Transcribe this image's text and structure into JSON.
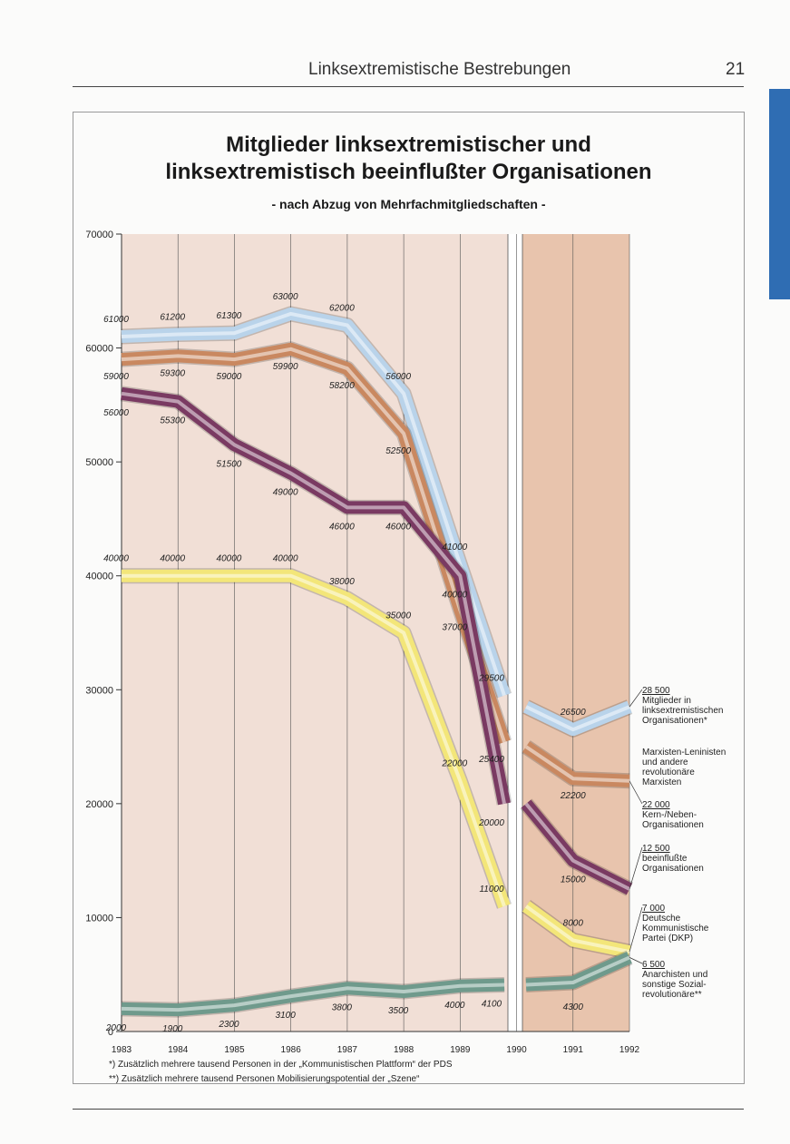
{
  "header": {
    "title": "Linksextremistische Bestrebungen",
    "page_number": "21"
  },
  "colors": {
    "background_before_1990": "#f1dfd6",
    "background_after_1990": "#e8c4ad",
    "series": [
      "#b9d3ea",
      "#c98860",
      "#7a3a62",
      "#f3e679",
      "#6f9a8c"
    ]
  },
  "chart_data": {
    "type": "line",
    "title_line1": "Mitglieder linksextremistischer und",
    "title_line2": "linksextremistisch beeinflußter Organisationen",
    "subtitle": "- nach Abzug von Mehrfachmitgliedschaften -",
    "xlabel": "",
    "ylabel": "",
    "ylim": [
      0,
      70000
    ],
    "yticks": [
      "0",
      "10000",
      "20000",
      "30000",
      "40000",
      "50000",
      "60000",
      "70000"
    ],
    "xticks": [
      "1983",
      "1984",
      "1985",
      "1986",
      "1987",
      "1988",
      "1989",
      "1990",
      "1991",
      "1992"
    ],
    "grid": true,
    "break_after": "1990",
    "series": [
      {
        "name": "Mitglieder in linksextremistischen Organisationen*",
        "segment1": [
          [
            1983,
            61000
          ],
          [
            1984,
            61200
          ],
          [
            1985,
            61300
          ],
          [
            1986,
            63000
          ],
          [
            1987,
            62000
          ],
          [
            1988,
            56000
          ],
          [
            1989,
            41000
          ],
          [
            1990,
            29500
          ]
        ],
        "segment2": [
          [
            1990,
            28500
          ],
          [
            1991,
            26500
          ],
          [
            1992,
            28500
          ]
        ],
        "labels": [
          {
            "x": 1983,
            "y": 61000,
            "text": "61000"
          },
          {
            "x": 1984,
            "y": 61200,
            "text": "61200"
          },
          {
            "x": 1985,
            "y": 61300,
            "text": "61300"
          },
          {
            "x": 1986,
            "y": 63000,
            "text": "63000"
          },
          {
            "x": 1987,
            "y": 62000,
            "text": "62000"
          },
          {
            "x": 1988,
            "y": 56000,
            "text": "56000"
          },
          {
            "x": 1989,
            "y": 41000,
            "text": "41000"
          },
          {
            "x": 1990,
            "y": 29500,
            "text": "29500"
          },
          {
            "x": 1991,
            "y": 26500,
            "text": "26500"
          }
        ],
        "end_value": "28 500",
        "end_label": [
          "Mitglieder in",
          "linksextremistischen",
          "Organisationen*"
        ]
      },
      {
        "name": "Marxisten-Leninisten und andere revolutionäre Marxisten",
        "segment1": [
          [
            1983,
            59000
          ],
          [
            1984,
            59300
          ],
          [
            1985,
            59000
          ],
          [
            1986,
            59900
          ],
          [
            1987,
            58200
          ],
          [
            1988,
            52500
          ],
          [
            1989,
            37000
          ],
          [
            1990,
            25400
          ]
        ],
        "segment2": [
          [
            1990,
            25000
          ],
          [
            1991,
            22200
          ],
          [
            1992,
            22000
          ]
        ],
        "labels": [
          {
            "x": 1983,
            "y": 59000,
            "text": "59000"
          },
          {
            "x": 1984,
            "y": 59300,
            "text": "59300"
          },
          {
            "x": 1985,
            "y": 59000,
            "text": "59000"
          },
          {
            "x": 1986,
            "y": 59900,
            "text": "59900"
          },
          {
            "x": 1987,
            "y": 58200,
            "text": "58200"
          },
          {
            "x": 1988,
            "y": 52500,
            "text": "52500"
          },
          {
            "x": 1989,
            "y": 37000,
            "text": "37000"
          },
          {
            "x": 1990,
            "y": 25400,
            "text": "25400"
          },
          {
            "x": 1991,
            "y": 22200,
            "text": "22200"
          }
        ],
        "end_value": "22 000",
        "end_label_above": [
          "Marxisten-Leninisten",
          "und andere",
          "revolutionäre",
          "Marxisten"
        ],
        "end_label": [
          "Kern-/Neben-",
          "Organisationen"
        ]
      },
      {
        "name": "beeinflußte Organisationen",
        "segment1": [
          [
            1983,
            56000
          ],
          [
            1984,
            55300
          ],
          [
            1985,
            51500
          ],
          [
            1986,
            49000
          ],
          [
            1987,
            46000
          ],
          [
            1988,
            46000
          ],
          [
            1989,
            40000
          ],
          [
            1990,
            20000
          ]
        ],
        "segment2": [
          [
            1990,
            20000
          ],
          [
            1991,
            15000
          ],
          [
            1992,
            12500
          ]
        ],
        "labels": [
          {
            "x": 1983,
            "y": 56000,
            "text": "56000"
          },
          {
            "x": 1984,
            "y": 55300,
            "text": "55300"
          },
          {
            "x": 1985,
            "y": 51500,
            "text": "51500"
          },
          {
            "x": 1986,
            "y": 49000,
            "text": "49000"
          },
          {
            "x": 1987,
            "y": 46000,
            "text": "46000"
          },
          {
            "x": 1988,
            "y": 46000,
            "text": "46000"
          },
          {
            "x": 1989,
            "y": 40000,
            "text": "40000"
          },
          {
            "x": 1990,
            "y": 20000,
            "text": "20000"
          },
          {
            "x": 1991,
            "y": 15000,
            "text": "15000"
          }
        ],
        "end_value": "12 500",
        "end_label": [
          "beeinflußte",
          "Organisationen"
        ]
      },
      {
        "name": "Deutsche Kommunistische Partei (DKP)",
        "segment1": [
          [
            1983,
            40000
          ],
          [
            1984,
            40000
          ],
          [
            1985,
            40000
          ],
          [
            1986,
            40000
          ],
          [
            1987,
            38000
          ],
          [
            1988,
            35000
          ],
          [
            1989,
            22000
          ],
          [
            1990,
            11000
          ]
        ],
        "segment2": [
          [
            1990,
            11000
          ],
          [
            1991,
            8000
          ],
          [
            1992,
            7000
          ]
        ],
        "labels": [
          {
            "x": 1983,
            "y": 40000,
            "text": "40000"
          },
          {
            "x": 1984,
            "y": 40000,
            "text": "40000"
          },
          {
            "x": 1985,
            "y": 40000,
            "text": "40000"
          },
          {
            "x": 1986,
            "y": 40000,
            "text": "40000"
          },
          {
            "x": 1987,
            "y": 38000,
            "text": "38000"
          },
          {
            "x": 1988,
            "y": 35000,
            "text": "35000"
          },
          {
            "x": 1989,
            "y": 22000,
            "text": "22000"
          },
          {
            "x": 1990,
            "y": 11000,
            "text": "11000"
          },
          {
            "x": 1991,
            "y": 8000,
            "text": "8000"
          }
        ],
        "end_value": "7 000",
        "end_label": [
          "Deutsche",
          "Kommunistische",
          "Partei (DKP)"
        ]
      },
      {
        "name": "Anarchisten und sonstige Sozialrevolutionäre**",
        "segment1": [
          [
            1983,
            2000
          ],
          [
            1984,
            1900
          ],
          [
            1985,
            2300
          ],
          [
            1986,
            3100
          ],
          [
            1987,
            3800
          ],
          [
            1988,
            3500
          ],
          [
            1989,
            4000
          ],
          [
            1990,
            4100
          ]
        ],
        "segment2": [
          [
            1990,
            4100
          ],
          [
            1991,
            4300
          ],
          [
            1992,
            6500
          ]
        ],
        "labels": [
          {
            "x": 1983,
            "y": 2000,
            "text": "2000"
          },
          {
            "x": 1984,
            "y": 1900,
            "text": "1900"
          },
          {
            "x": 1985,
            "y": 2300,
            "text": "2300"
          },
          {
            "x": 1986,
            "y": 3100,
            "text": "3100"
          },
          {
            "x": 1987,
            "y": 3800,
            "text": "3800"
          },
          {
            "x": 1988,
            "y": 3500,
            "text": "3500"
          },
          {
            "x": 1989,
            "y": 4000,
            "text": "4000"
          },
          {
            "x": 1990,
            "y": 4100,
            "text": "4100"
          },
          {
            "x": 1991,
            "y": 4300,
            "text": "4300"
          }
        ],
        "end_value": "6 500",
        "end_label": [
          "Anarchisten und",
          "sonstige Sozial-",
          "revolutionäre**"
        ]
      }
    ],
    "footnotes": [
      "*) Zusätzlich mehrere tausend Personen in der „Kommunistischen Plattform“ der PDS",
      "**) Zusätzlich mehrere tausend Personen Mobilisierungspotential der „Szene“"
    ]
  }
}
